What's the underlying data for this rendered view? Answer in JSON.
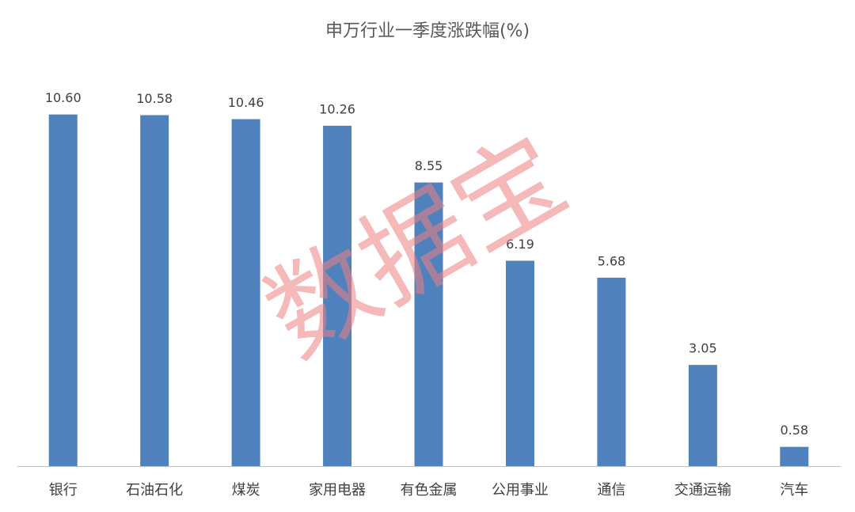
{
  "chart_data": {
    "type": "bar",
    "title": "申万行业一季度涨跌幅(%)",
    "categories": [
      "银行",
      "石油石化",
      "煤炭",
      "家用电器",
      "有色金属",
      "公用事业",
      "通信",
      "交通运输",
      "汽车"
    ],
    "values": [
      10.6,
      10.58,
      10.46,
      10.26,
      8.55,
      6.19,
      5.68,
      3.05,
      0.58
    ],
    "value_labels": [
      "10.60",
      "10.58",
      "10.46",
      "10.26",
      "8.55",
      "6.19",
      "5.68",
      "3.05",
      "0.58"
    ],
    "color": "#4f81bd",
    "ylim": [
      0,
      12
    ],
    "watermark": "数据宝"
  }
}
